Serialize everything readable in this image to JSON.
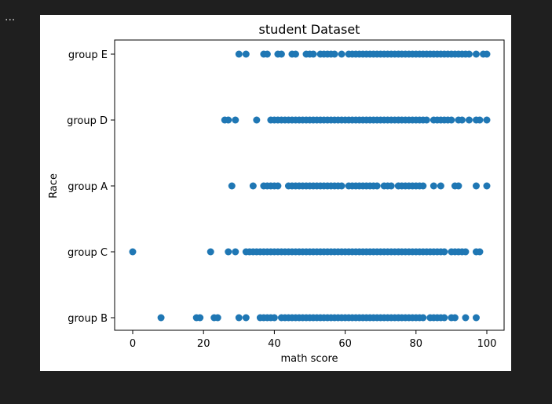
{
  "toolbar": {
    "overflow_label": "..."
  },
  "colors": {
    "marker": "#1f77b4",
    "background": "#1f1f1f",
    "axes": "#000000"
  },
  "chart_data": {
    "type": "scatter",
    "title": "student Dataset",
    "xlabel": "math score",
    "ylabel": "Race",
    "xlim": [
      -5,
      105
    ],
    "xticks": [
      0,
      20,
      40,
      60,
      80,
      100
    ],
    "grid": false,
    "categories": [
      "group B",
      "group C",
      "group A",
      "group D",
      "group E"
    ],
    "series": [
      {
        "category": "group E",
        "x": [
          30,
          32,
          37,
          38,
          41,
          42,
          45,
          46,
          49,
          50,
          51,
          53,
          54,
          55,
          56,
          57,
          59,
          61,
          62,
          63,
          64,
          65,
          66,
          67,
          68,
          69,
          70,
          71,
          72,
          73,
          74,
          75,
          76,
          77,
          78,
          79,
          80,
          81,
          82,
          83,
          84,
          85,
          86,
          87,
          88,
          89,
          90,
          91,
          92,
          93,
          94,
          95,
          97,
          99,
          100
        ]
      },
      {
        "category": "group D",
        "x": [
          26,
          27,
          29,
          35,
          39,
          40,
          41,
          42,
          43,
          44,
          45,
          46,
          47,
          48,
          49,
          50,
          51,
          52,
          53,
          54,
          55,
          56,
          57,
          58,
          59,
          60,
          61,
          62,
          63,
          64,
          65,
          66,
          67,
          68,
          69,
          70,
          71,
          72,
          73,
          74,
          75,
          76,
          77,
          78,
          79,
          80,
          81,
          82,
          83,
          85,
          86,
          87,
          88,
          89,
          90,
          92,
          93,
          95,
          97,
          98,
          100
        ]
      },
      {
        "category": "group A",
        "x": [
          28,
          34,
          37,
          38,
          39,
          40,
          41,
          44,
          45,
          46,
          47,
          48,
          49,
          50,
          51,
          52,
          53,
          54,
          55,
          56,
          57,
          58,
          59,
          61,
          62,
          63,
          64,
          65,
          66,
          67,
          68,
          69,
          71,
          72,
          73,
          75,
          76,
          77,
          78,
          79,
          80,
          81,
          82,
          85,
          87,
          91,
          92,
          97,
          100
        ]
      },
      {
        "category": "group C",
        "x": [
          0,
          22,
          27,
          29,
          32,
          33,
          34,
          35,
          36,
          37,
          38,
          39,
          40,
          41,
          42,
          43,
          44,
          45,
          46,
          47,
          48,
          49,
          50,
          51,
          52,
          53,
          54,
          55,
          56,
          57,
          58,
          59,
          60,
          61,
          62,
          63,
          64,
          65,
          66,
          67,
          68,
          69,
          70,
          71,
          72,
          73,
          74,
          75,
          76,
          77,
          78,
          79,
          80,
          81,
          82,
          83,
          84,
          85,
          86,
          87,
          88,
          90,
          91,
          92,
          93,
          94,
          97,
          98
        ]
      },
      {
        "category": "group B",
        "x": [
          8,
          18,
          19,
          23,
          24,
          30,
          32,
          36,
          37,
          38,
          39,
          40,
          42,
          43,
          44,
          45,
          46,
          47,
          48,
          49,
          50,
          51,
          52,
          53,
          54,
          55,
          56,
          57,
          58,
          59,
          60,
          61,
          62,
          63,
          64,
          65,
          66,
          67,
          68,
          69,
          70,
          71,
          72,
          73,
          74,
          75,
          76,
          77,
          78,
          79,
          80,
          81,
          82,
          84,
          85,
          86,
          87,
          88,
          90,
          91,
          94,
          97
        ]
      }
    ]
  }
}
